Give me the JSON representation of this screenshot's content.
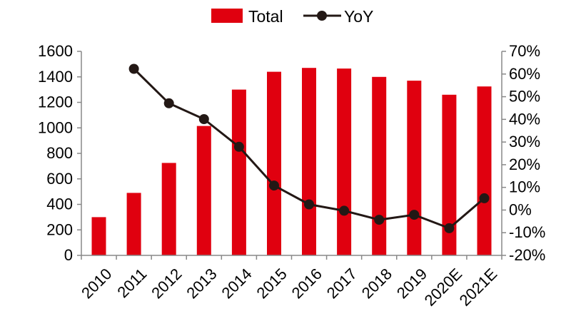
{
  "chart_data": {
    "type": "bar",
    "categories": [
      "2010",
      "2011",
      "2012",
      "2013",
      "2014",
      "2015",
      "2016",
      "2017",
      "2018",
      "2019",
      "2020E",
      "2021E"
    ],
    "series": [
      {
        "name": "Total",
        "type": "bar",
        "axis": "left",
        "color": "#E0000F",
        "values": [
          300,
          490,
          725,
          1015,
          1300,
          1440,
          1470,
          1465,
          1400,
          1370,
          1260,
          1325
        ]
      },
      {
        "name": "YoY",
        "type": "line",
        "axis": "right",
        "color": "#231815",
        "values": [
          null,
          62.3,
          47.1,
          40.1,
          27.9,
          10.8,
          2.5,
          -0.3,
          -4.3,
          -2.1,
          -8.0,
          5.2
        ]
      }
    ],
    "y_left": {
      "ylim": [
        0,
        1600
      ],
      "ticks": [
        "0",
        "200",
        "400",
        "600",
        "800",
        "1000",
        "1200",
        "1400",
        "1600"
      ]
    },
    "y_right": {
      "ylim": [
        -20,
        70
      ],
      "ticks": [
        "-20%",
        "-10%",
        "0%",
        "10%",
        "20%",
        "30%",
        "40%",
        "50%",
        "60%",
        "70%"
      ]
    },
    "legend": {
      "position": "top-center",
      "entries": [
        "Total",
        "YoY"
      ]
    },
    "grid": false,
    "title": "",
    "xlabel": "",
    "ylabel": ""
  }
}
